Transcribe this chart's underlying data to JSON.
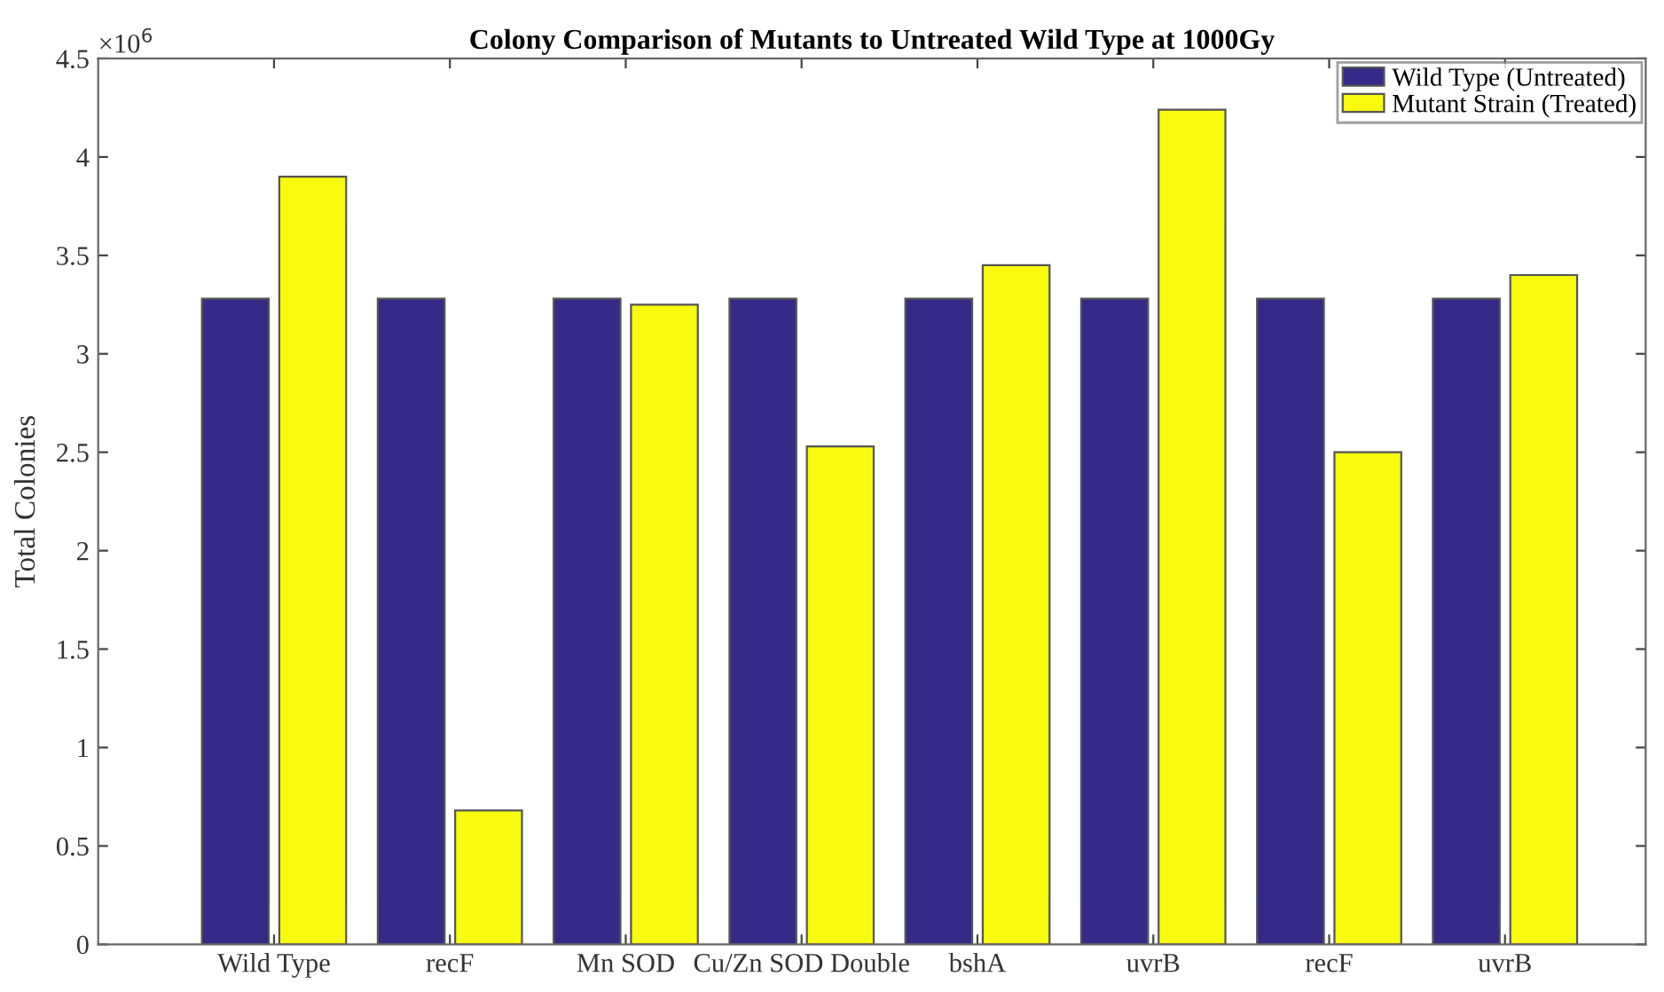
{
  "chart_data": {
    "type": "bar",
    "title": "Colony Comparison of Mutants to Untreated Wild Type at 1000Gy",
    "ylabel": "Total Colonies",
    "categories": [
      "Wild Type",
      "recF",
      "Mn SOD",
      "Cu/Zn SOD Double",
      "bshA",
      "uvrB",
      "recF",
      "uvrB"
    ],
    "series": [
      {
        "name": "Wild Type (Untreated)",
        "color": "#352a87",
        "values": [
          3.28,
          3.28,
          3.28,
          3.28,
          3.28,
          3.28,
          3.28,
          3.28
        ]
      },
      {
        "name": "Mutant Strain (Treated)",
        "color": "#f9fb0e",
        "values": [
          3.9,
          0.68,
          3.25,
          2.53,
          3.45,
          4.24,
          2.5,
          3.4
        ]
      }
    ],
    "ylim": [
      0,
      4.5
    ],
    "yticks": [
      0,
      0.5,
      1,
      1.5,
      2,
      2.5,
      3,
      3.5,
      4,
      4.5
    ],
    "annotations": [
      "×10$^{6}$"
    ],
    "legend": "top right",
    "grid": false
  }
}
